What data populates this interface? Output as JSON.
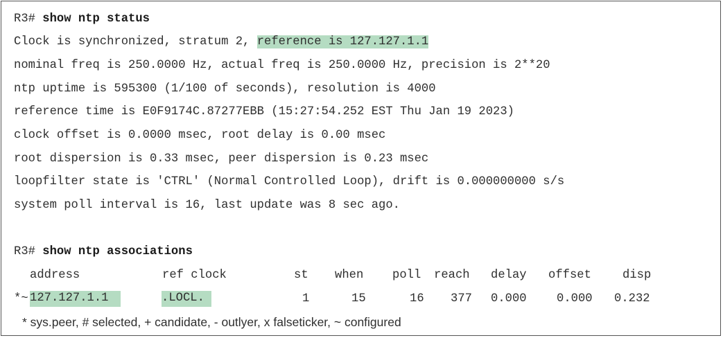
{
  "status_section": {
    "prompt": "R3#",
    "command": "show ntp status",
    "line1_prefix": "Clock is synchronized, stratum 2, ",
    "line1_highlight": "reference is 127.127.1.1",
    "line2": "nominal freq is 250.0000 Hz, actual freq is 250.0000 Hz, precision is 2**20",
    "line3": "ntp uptime is 595300 (1/100 of seconds), resolution is 4000",
    "line4": "reference time is E0F9174C.87277EBB (15:27:54.252 EST Thu Jan 19 2023)",
    "line5": "clock offset is 0.0000 msec, root delay is 0.00 msec",
    "line6": "root dispersion is 0.33 msec, peer dispersion is 0.23 msec",
    "line7": "loopfilter state is 'CTRL' (Normal Controlled Loop), drift is 0.000000000 s/s",
    "line8": "system poll interval is 16, last update was 8 sec ago."
  },
  "associations_section": {
    "prompt": "R3#",
    "command": "show ntp associations",
    "headers": {
      "address": "address",
      "ref_clock": "ref clock",
      "st": "st",
      "when": "when",
      "poll": "poll",
      "reach": "reach",
      "delay": "delay",
      "offset": "offset",
      "disp": "disp"
    },
    "row": {
      "flags": "*~",
      "address": "127.127.1.1",
      "ref_clock": ".LOCL.",
      "st": "1",
      "when": "15",
      "poll": "16",
      "reach": "377",
      "delay": "0.000",
      "offset": "0.000",
      "disp": "0.232"
    },
    "legend": "* sys.peer, # selected, + candidate, - outlyer, x falseticker, ~ configured"
  },
  "colors": {
    "highlight": "#b5dcc2",
    "text": "#2f2f2f",
    "border": "#555555"
  }
}
